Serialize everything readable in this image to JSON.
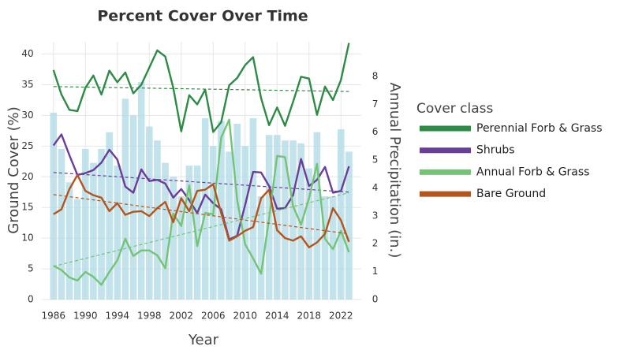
{
  "chart_data": {
    "type": "line",
    "title": "Percent Cover Over Time",
    "x_label": "Year",
    "y_label": "Ground Cover (%)",
    "y2_label": "Annual Precipitation (in.)",
    "legend_title": "Cover class",
    "legend": "right",
    "grid": true,
    "x": [
      1986,
      1987,
      1988,
      1989,
      1990,
      1991,
      1992,
      1993,
      1994,
      1995,
      1996,
      1997,
      1998,
      1999,
      2000,
      2001,
      2002,
      2003,
      2004,
      2005,
      2006,
      2007,
      2008,
      2009,
      2010,
      2011,
      2012,
      2013,
      2014,
      2015,
      2016,
      2017,
      2018,
      2019,
      2020,
      2021,
      2022,
      2023
    ],
    "xlim": [
      1984.5,
      2024.5
    ],
    "xticks": [
      1986,
      1990,
      1994,
      1998,
      2002,
      2006,
      2010,
      2014,
      2018,
      2022
    ],
    "ylim": [
      0,
      42
    ],
    "yticks": [
      0,
      5,
      10,
      15,
      20,
      25,
      30,
      35,
      40
    ],
    "y2lim": [
      0,
      9.24
    ],
    "y2ticks": [
      0,
      1,
      2,
      3,
      4,
      5,
      6,
      7,
      8
    ],
    "precipitation": {
      "type": "bar",
      "axis": "y2",
      "color": "#add8e6",
      "values": [
        6.7,
        5.4,
        4.2,
        3.6,
        5.4,
        4.9,
        5.4,
        6.0,
        4.8,
        7.2,
        6.6,
        7.8,
        6.2,
        5.7,
        4.9,
        4.4,
        3.7,
        4.8,
        4.8,
        6.5,
        5.5,
        6.4,
        5.3,
        6.3,
        5.5,
        6.5,
        3.7,
        5.9,
        5.9,
        5.7,
        5.7,
        5.6,
        4.7,
        6.0,
        3.7,
        3.7,
        6.1,
        5.3
      ]
    },
    "series": [
      {
        "name": "Perennial Forb & Grass",
        "color": "#2e8b45",
        "trend": [
          34.7,
          33.9
        ],
        "values": [
          37.4,
          33.4,
          30.9,
          30.7,
          34.5,
          36.5,
          33.4,
          37.3,
          35.4,
          37.0,
          33.6,
          35.0,
          37.8,
          40.6,
          39.6,
          34.5,
          27.4,
          33.3,
          31.8,
          34.2,
          27.3,
          28.9,
          34.9,
          36.1,
          38.2,
          39.5,
          32.8,
          28.4,
          31.3,
          28.3,
          32.2,
          36.3,
          36.0,
          30.1,
          34.7,
          32.5,
          35.8,
          41.8
        ]
      },
      {
        "name": "Shrubs",
        "color": "#6a3d9a",
        "trend": [
          20.7,
          17.5
        ],
        "values": [
          25.1,
          26.9,
          23.5,
          20.3,
          20.6,
          21.1,
          22.3,
          24.4,
          22.8,
          18.4,
          17.4,
          21.2,
          19.3,
          19.5,
          18.9,
          16.6,
          18.0,
          16.2,
          14.1,
          17.1,
          15.7,
          14.7,
          9.8,
          10.4,
          15.4,
          20.8,
          20.7,
          18.5,
          14.8,
          14.9,
          17.0,
          22.9,
          18.5,
          19.5,
          21.6,
          17.4,
          17.7,
          21.7
        ]
      },
      {
        "name": "Annual Forb & Grass",
        "color": "#74c476",
        "trend": [
          5.4,
          17.4
        ],
        "values": [
          5.5,
          4.8,
          3.6,
          3.1,
          4.5,
          3.7,
          2.4,
          4.5,
          6.4,
          9.9,
          7.1,
          8.0,
          8.0,
          7.2,
          5.1,
          14.0,
          12.0,
          18.6,
          8.7,
          14.1,
          13.9,
          26.4,
          29.3,
          16.3,
          9.0,
          6.7,
          4.2,
          13.2,
          23.4,
          23.2,
          15.2,
          12.2,
          16.5,
          22.1,
          9.9,
          8.2,
          11.2,
          7.7
        ]
      },
      {
        "name": "Bare Ground",
        "color": "#b5541b",
        "trend": [
          17.1,
          10.7
        ],
        "values": [
          13.9,
          14.7,
          18.0,
          20.3,
          17.7,
          17.0,
          16.6,
          14.4,
          15.7,
          13.8,
          14.3,
          14.4,
          13.6,
          14.9,
          15.9,
          12.6,
          16.5,
          14.4,
          17.7,
          17.9,
          18.8,
          14.1,
          9.6,
          10.3,
          11.2,
          11.8,
          16.5,
          17.9,
          11.3,
          10.0,
          9.6,
          10.3,
          8.5,
          9.3,
          10.7,
          14.9,
          12.9,
          9.4
        ]
      }
    ]
  }
}
